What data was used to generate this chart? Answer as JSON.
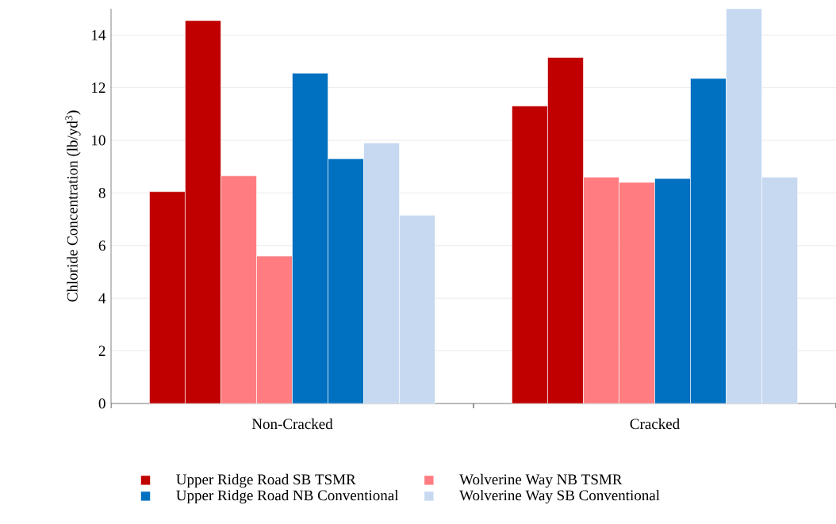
{
  "chart_data": {
    "type": "bar",
    "ylabel": "Chloride Concentration (lb/yd$^{3}$)",
    "categories": [
      "Non-Cracked",
      "Cracked"
    ],
    "series": [
      {
        "name": "Upper Ridge Road SB TSMR",
        "color": "#c00000",
        "values": [
          8.05,
          11.3
        ]
      },
      {
        "color": "#c00000",
        "values": [
          14.55,
          13.15
        ]
      },
      {
        "name": "Wolverine Way NB TSMR",
        "color": "#ff7c80",
        "values": [
          8.65,
          8.6
        ]
      },
      {
        "color": "#ff7c80",
        "values": [
          5.6,
          8.4
        ]
      },
      {
        "name": "Upper Ridge Road NB Conventional",
        "color": "#0070c0",
        "values": [
          12.55,
          8.55
        ]
      },
      {
        "color": "#0070c0",
        "values": [
          9.3,
          12.35
        ]
      },
      {
        "name": "Wolverine Way SB Conventional",
        "color": "#c6d9f1",
        "values": [
          9.9,
          15
        ]
      },
      {
        "color": "#c6d9f1",
        "values": [
          7.15,
          8.6
        ]
      }
    ],
    "ylim": [
      0,
      15
    ],
    "yticks": [
      0,
      2,
      4,
      6,
      8,
      10,
      12,
      14
    ],
    "grid": "y",
    "legend": "bottom"
  }
}
